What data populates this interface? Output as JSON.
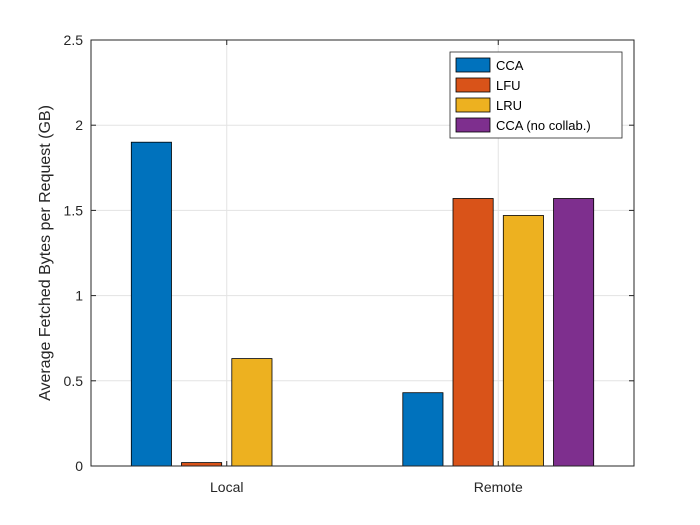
{
  "chart_data": {
    "type": "bar",
    "categories": [
      "Local",
      "Remote"
    ],
    "series": [
      {
        "name": "CCA",
        "color": "#0072BD",
        "values": [
          1.9,
          0.43
        ]
      },
      {
        "name": "LFU",
        "color": "#D95319",
        "values": [
          0.02,
          1.57
        ]
      },
      {
        "name": "LRU",
        "color": "#EDB120",
        "values": [
          0.63,
          1.47
        ]
      },
      {
        "name": "CCA (no collab.)",
        "color": "#7E2F8E",
        "values": [
          0,
          1.57
        ]
      }
    ],
    "title": "",
    "xlabel": "",
    "ylabel": "Average Fetched Bytes per Request (GB)",
    "ylim": [
      0,
      2.5
    ],
    "yticks": [
      0,
      0.5,
      1,
      1.5,
      2,
      2.5
    ],
    "ytick_labels": [
      "0",
      "0.5",
      "1",
      "1.5",
      "2",
      "2.5"
    ],
    "grid": true,
    "legend_position": "top-right"
  }
}
